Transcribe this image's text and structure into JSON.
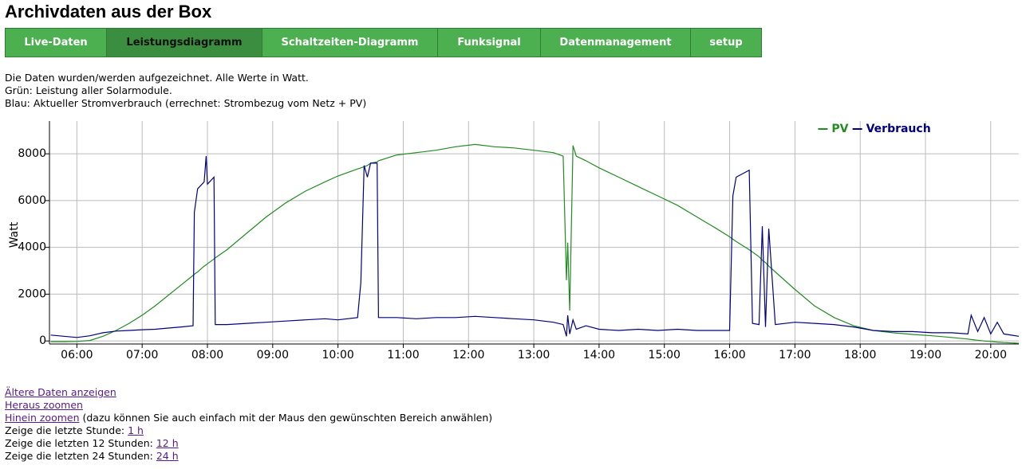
{
  "header": {
    "title": "Archivdaten aus der Box"
  },
  "nav": [
    "Live-Daten",
    "Leistungsdiagramm",
    "Schaltzeiten-Diagramm",
    "Funksignal",
    "Datenmanagement",
    "setup"
  ],
  "description": [
    "Die Daten wurden/werden aufgezeichnet. Alle Werte in Watt.",
    "Grün: Leistung aller Solarmodule.",
    "Blau: Aktueller Stromverbrauch (errechnet: Strombezug vom Netz + PV)"
  ],
  "chart_data": {
    "type": "line",
    "ylabel": "Watt",
    "x": [
      5.6,
      5.8,
      6.0,
      6.2,
      6.4,
      6.6,
      6.8,
      7.0,
      7.2,
      7.4,
      7.6,
      7.78,
      7.8,
      7.85,
      7.95,
      7.98,
      8.0,
      8.1,
      8.12,
      8.3,
      8.6,
      8.9,
      9.2,
      9.5,
      9.8,
      10.0,
      10.3,
      10.35,
      10.4,
      10.45,
      10.5,
      10.6,
      10.62,
      10.9,
      11.2,
      11.5,
      11.8,
      12.1,
      12.4,
      12.7,
      13.0,
      13.3,
      13.45,
      13.5,
      13.52,
      13.55,
      13.6,
      13.65,
      13.8,
      14.0,
      14.3,
      14.6,
      14.9,
      15.2,
      15.5,
      15.8,
      16.0,
      16.05,
      16.1,
      16.3,
      16.35,
      16.45,
      16.5,
      16.55,
      16.6,
      16.7,
      17.0,
      17.3,
      17.6,
      17.9,
      18.2,
      18.5,
      18.8,
      19.1,
      19.4,
      19.65,
      19.7,
      19.8,
      19.9,
      20.0,
      20.1,
      20.2,
      20.43
    ],
    "series": [
      {
        "name": "PV",
        "color": "#228b22",
        "values": [
          -30,
          -30,
          -20,
          20,
          200,
          450,
          750,
          1100,
          1500,
          1950,
          2400,
          2800,
          2850,
          2950,
          3200,
          3250,
          3300,
          3500,
          3550,
          3900,
          4600,
          5300,
          5900,
          6400,
          6800,
          7050,
          7350,
          7400,
          7450,
          7500,
          7600,
          7650,
          7700,
          7950,
          8050,
          8150,
          8300,
          8400,
          8300,
          8250,
          8150,
          8050,
          7900,
          2600,
          4200,
          1300,
          8350,
          7900,
          7700,
          7400,
          7000,
          6600,
          6200,
          5800,
          5300,
          4800,
          4450,
          4350,
          4250,
          3900,
          3800,
          3600,
          3450,
          3350,
          3200,
          2950,
          2200,
          1500,
          1000,
          650,
          450,
          350,
          280,
          220,
          150,
          80,
          60,
          30,
          0,
          -20,
          -50,
          -70,
          -100
        ]
      },
      {
        "name": "Verbrauch",
        "color": "#000080",
        "values": [
          250,
          200,
          150,
          220,
          350,
          420,
          450,
          480,
          500,
          550,
          600,
          650,
          5500,
          6500,
          6800,
          7900,
          6700,
          7000,
          700,
          700,
          750,
          800,
          850,
          900,
          950,
          900,
          1000,
          2500,
          7500,
          7000,
          7600,
          7600,
          1000,
          1000,
          950,
          1000,
          1000,
          1050,
          1000,
          950,
          900,
          800,
          700,
          200,
          1100,
          300,
          900,
          500,
          650,
          500,
          450,
          500,
          450,
          500,
          450,
          450,
          450,
          6200,
          7000,
          7300,
          750,
          700,
          4900,
          600,
          4800,
          700,
          800,
          750,
          700,
          600,
          450,
          400,
          400,
          350,
          350,
          300,
          1100,
          400,
          1000,
          300,
          800,
          300,
          200
        ]
      }
    ],
    "xlim": [
      5.58,
      20.43
    ],
    "xticks": [
      {
        "value": 6,
        "label": "06:00"
      },
      {
        "value": 7,
        "label": "07:00"
      },
      {
        "value": 8,
        "label": "08:00"
      },
      {
        "value": 9,
        "label": "09:00"
      },
      {
        "value": 10,
        "label": "10:00"
      },
      {
        "value": 11,
        "label": "11:00"
      },
      {
        "value": 12,
        "label": "12:00"
      },
      {
        "value": 13,
        "label": "13:00"
      },
      {
        "value": 14,
        "label": "14:00"
      },
      {
        "value": 15,
        "label": "15:00"
      },
      {
        "value": 16,
        "label": "16:00"
      },
      {
        "value": 17,
        "label": "17:00"
      },
      {
        "value": 18,
        "label": "18:00"
      },
      {
        "value": 19,
        "label": "19:00"
      },
      {
        "value": 20,
        "label": "20:00"
      }
    ],
    "ylim": [
      -130,
      9400
    ],
    "yticks": [
      0,
      2000,
      4000,
      6000,
      8000
    ],
    "grid": true,
    "legend": "top-right"
  },
  "links": [
    {
      "link": "Ältere Daten anzeigen"
    },
    {
      "link": "Heraus zoomen"
    },
    {
      "link": "Hinein zoomen",
      "text": "(dazu können Sie auch einfach mit der Maus den gewünschten Bereich anwählen)"
    },
    {
      "text": "Zeige die letzte Stunde:",
      "link": "1 h"
    },
    {
      "text": "Zeige die letzten 12 Stunden:",
      "link": "12 h"
    },
    {
      "text": "Zeige die letzten 24 Stunden:",
      "link": "24 h"
    }
  ]
}
